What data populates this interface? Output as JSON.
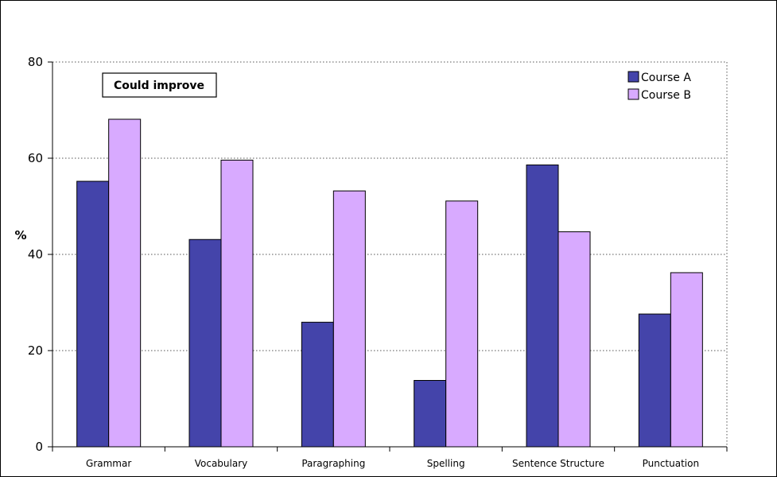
{
  "chart_data": {
    "type": "bar",
    "categories": [
      "Grammar",
      "Vocabulary",
      "Paragraphing",
      "Spelling",
      "Sentence Structure",
      "Punctuation"
    ],
    "series": [
      {
        "name": "Course A",
        "values": [
          55.2,
          43.1,
          25.9,
          13.8,
          58.6,
          27.6
        ],
        "color": "#4444aa"
      },
      {
        "name": "Course B",
        "values": [
          68.1,
          59.6,
          53.2,
          51.1,
          44.7,
          36.2
        ],
        "color": "#d8aaff"
      }
    ],
    "ylabel": "%",
    "xlabel": "",
    "ylim": [
      0,
      80
    ],
    "yticks": [
      0,
      20,
      40,
      60,
      80
    ],
    "grid": true,
    "legend": "top-right",
    "annotation": "Could improve"
  }
}
